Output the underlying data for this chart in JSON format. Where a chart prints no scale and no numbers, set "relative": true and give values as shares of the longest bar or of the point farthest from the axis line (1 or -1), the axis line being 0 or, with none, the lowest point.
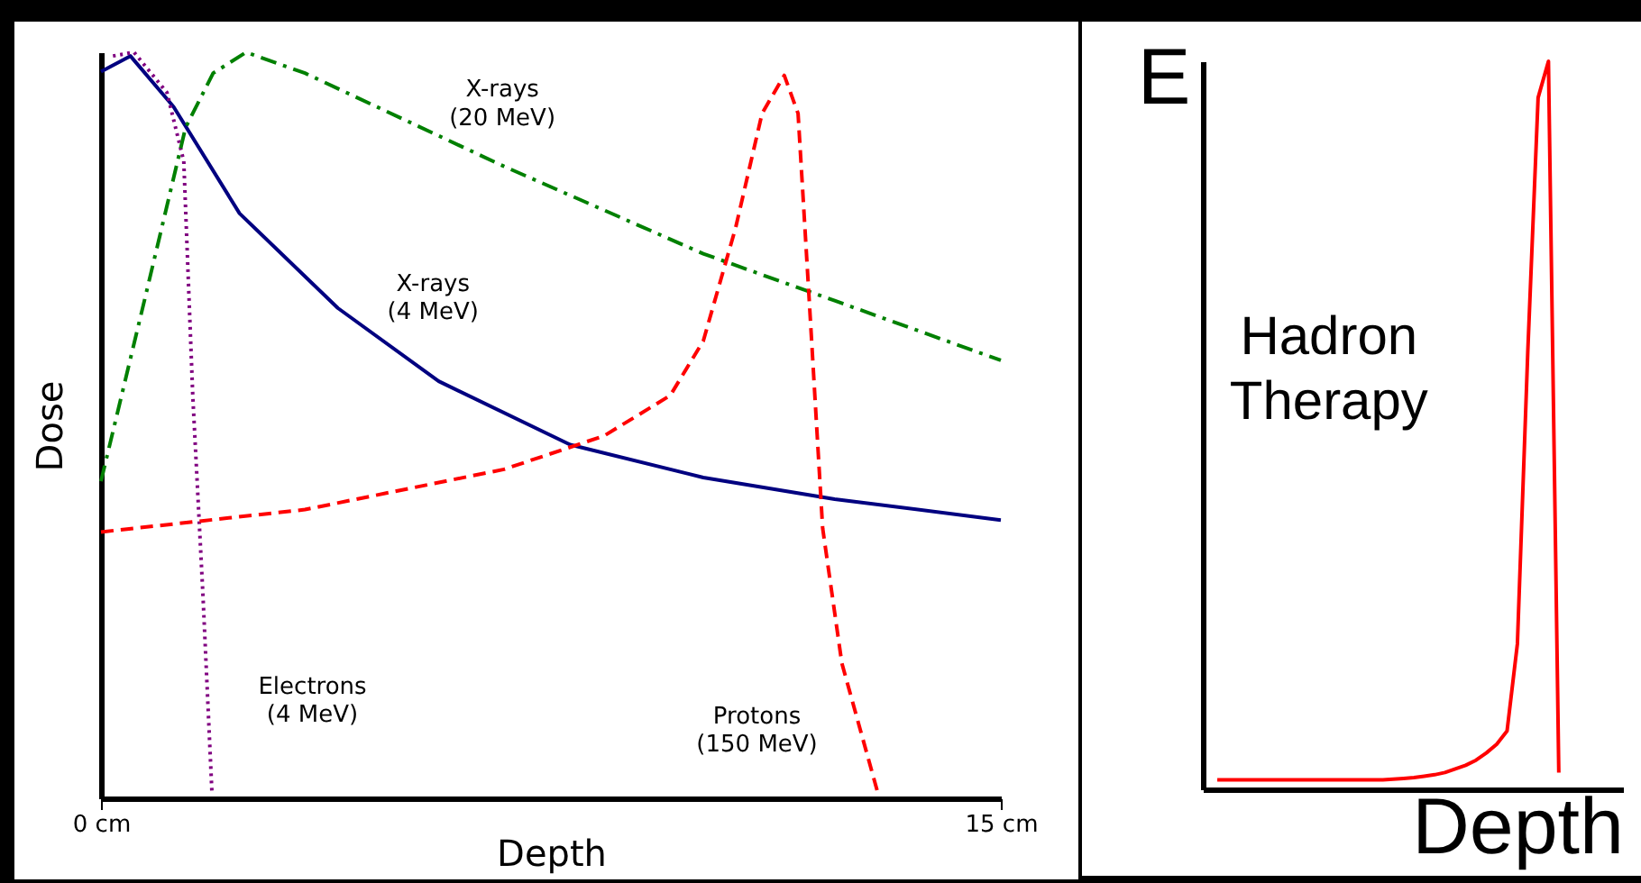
{
  "chart_data": [
    {
      "type": "line",
      "xlabel": "Depth",
      "ylabel": "Dose",
      "relative": true,
      "xlim": [
        0,
        15
      ],
      "xticks": [
        {
          "value": 0,
          "label": "0 cm"
        },
        {
          "value": 15,
          "label": "15 cm"
        }
      ],
      "series": [
        {
          "color": "#000080",
          "line_style": "solid",
          "x": [
            0,
            0.49,
            1.21,
            2.31,
            3.95,
            5.63,
            7.82,
            10.04,
            12.23,
            15
          ],
          "values": [
            0.974,
            0.995,
            0.927,
            0.784,
            0.657,
            0.559,
            0.474,
            0.43,
            0.401,
            0.373
          ]
        },
        {
          "color": "#800080",
          "line_style": "dotted",
          "x": [
            0.2,
            0.55,
            1.1,
            1.38,
            1.53,
            1.7,
            1.85
          ],
          "values": [
            0.995,
            1.0,
            0.946,
            0.854,
            0.54,
            0.272,
            0.007
          ]
        },
        {
          "color": "#008000",
          "line_style": "dashdot",
          "x": [
            0,
            0.75,
            1.41,
            1.87,
            2.42,
            3.4,
            6.72,
            10.04,
            12.23,
            15
          ],
          "values": [
            0.425,
            0.676,
            0.899,
            0.972,
            1.0,
            0.972,
            0.847,
            0.73,
            0.667,
            0.587
          ]
        },
        {
          "color": "#ff0000",
          "line_style": "dashed",
          "x": [
            0,
            3.4,
            6.72,
            8.39,
            9.49,
            10.04,
            10.58,
            11.02,
            11.39,
            11.62,
            11.8,
            12.03,
            12.35,
            12.95
          ],
          "values": [
            0.357,
            0.387,
            0.441,
            0.486,
            0.54,
            0.613,
            0.765,
            0.918,
            0.969,
            0.918,
            0.676,
            0.362,
            0.181,
            0.007
          ]
        }
      ],
      "annotations": [
        "X-rays\n(20 MeV)",
        "X-rays\n(4 MeV)",
        "Electrons\n(4 MeV)",
        "Protons\n(150 MeV)"
      ]
    },
    {
      "type": "line",
      "xlabel": "Depth",
      "ylabel": "E",
      "relative": true,
      "categories": [
        null,
        null,
        null,
        null,
        null,
        null,
        null,
        null,
        null,
        null,
        null,
        null,
        null,
        null,
        null,
        null,
        null,
        null,
        null,
        null,
        null,
        null,
        null,
        null,
        null,
        null,
        null,
        null,
        null,
        null,
        null,
        null,
        null,
        null
      ],
      "series": [
        {
          "color": "#ff0000",
          "line_style": "solid",
          "values": [
            0.013,
            0.013,
            0.013,
            0.013,
            0.013,
            0.013,
            0.013,
            0.013,
            0.013,
            0.013,
            0.013,
            0.013,
            0.013,
            0.013,
            0.013,
            0.013,
            0.013,
            0.014,
            0.015,
            0.016,
            0.018,
            0.02,
            0.023,
            0.028,
            0.033,
            0.04,
            0.05,
            0.062,
            0.08,
            0.2,
            0.6,
            0.95,
            1.0,
            0.023
          ]
        }
      ],
      "annotations": [
        "Hadron\nTherapy"
      ]
    }
  ]
}
